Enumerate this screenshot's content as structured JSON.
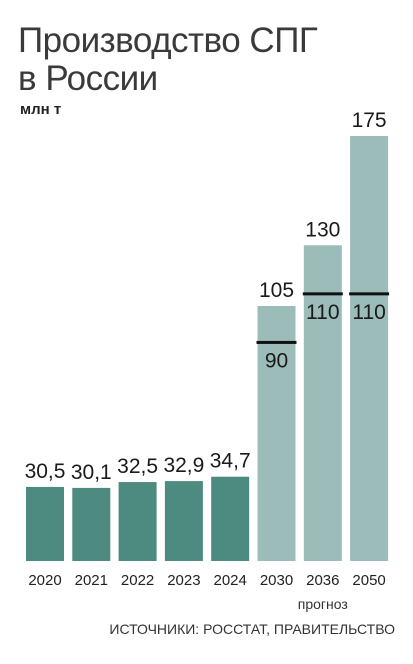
{
  "title_line1": "Производство СПГ",
  "title_line2": "в России",
  "unit": "млн т",
  "forecast_label": "прогноз",
  "source": "ИСТОЧНИКИ: РОССТАТ, ПРАВИТЕЛЬСТВО",
  "colors": {
    "actual": "#4d8a80",
    "forecast": "#9bbcb9",
    "marker": "#111111"
  },
  "chart_data": {
    "type": "bar",
    "categories": [
      "2020",
      "2021",
      "2022",
      "2023",
      "2024",
      "2030",
      "2036",
      "2050"
    ],
    "values": [
      30.5,
      30.1,
      32.5,
      32.9,
      34.7,
      105,
      130,
      175
    ],
    "value_labels": [
      "30,5",
      "30,1",
      "32,5",
      "32,9",
      "34,7",
      "105",
      "130",
      "175"
    ],
    "forecast": [
      false,
      false,
      false,
      false,
      false,
      true,
      true,
      true
    ],
    "secondary_values": [
      null,
      null,
      null,
      null,
      null,
      90,
      110,
      110
    ],
    "secondary_labels": [
      null,
      null,
      null,
      null,
      null,
      "90",
      "110",
      "110"
    ],
    "ylim": [
      0,
      175
    ],
    "grid": false,
    "legend": "none"
  }
}
